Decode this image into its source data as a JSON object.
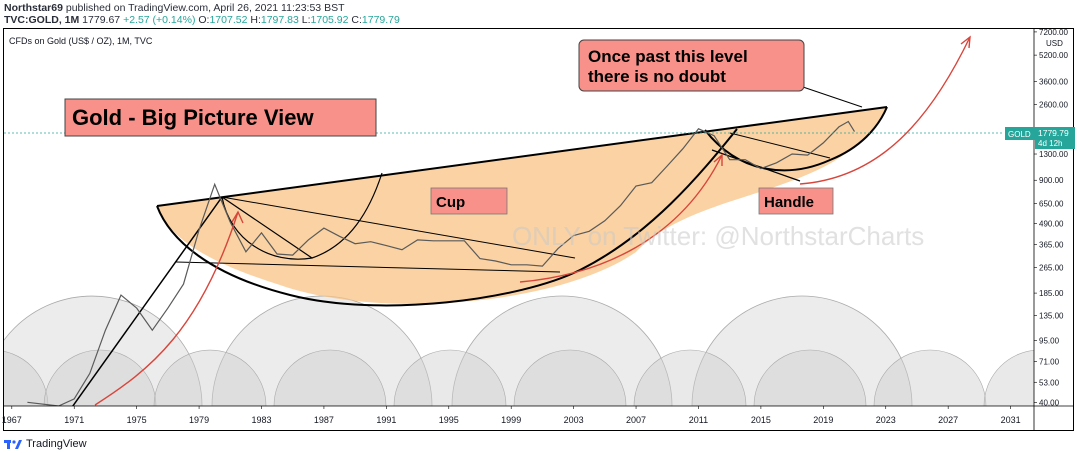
{
  "header": {
    "author": "Northstar69",
    "published": "published on TradingView.com, April 26, 2021 11:23:53 BST",
    "symbol": "TVC:GOLD, 1M",
    "last": "1779.67",
    "change": "+2.57 (+0.14%)",
    "o_label": "O:",
    "o_value": "1707.52",
    "h_label": "H:",
    "h_value": "1797.83",
    "l_label": "L:",
    "l_value": "1705.92",
    "c_label": "C:",
    "c_value": "1779.79"
  },
  "footer": {
    "brand": "TradingView"
  },
  "colors": {
    "up": "#26a69a",
    "down": "#ef5350",
    "cup_fill": "#f8c384",
    "callout": "#f7918a",
    "curve": "#d8453b",
    "cycle": "#cfcfcf"
  },
  "chart_data": {
    "type": "line",
    "chart_label": "CFDs on Gold (US$ / OZ), 1M, TVC",
    "title_box": "Gold - Big Picture View",
    "annotations": {
      "cup": "Cup",
      "handle": "Handle",
      "callout": "Once past this level\nthere is no doubt"
    },
    "watermark": "ONLY on Twitter: @NorthstarCharts",
    "x_ticks": [
      "1967",
      "1971",
      "1975",
      "1979",
      "1983",
      "1987",
      "1991",
      "1995",
      "1999",
      "2003",
      "2007",
      "2011",
      "2015",
      "2019",
      "2023",
      "2027",
      "2031"
    ],
    "y_ticks": [
      "7200.00",
      "5200.00",
      "3600.00",
      "2600.00",
      "1300.00",
      "900.00",
      "650.00",
      "490.00",
      "365.00",
      "265.00",
      "185.00",
      "135.00",
      "95.00",
      "71.00",
      "53.00",
      "40.00"
    ],
    "y_currency": "USD",
    "price_label": {
      "symbol": "GOLD",
      "value": "1779.79",
      "countdown": "4d 12h"
    },
    "y_scale": "log",
    "ylim": [
      38,
      7500
    ],
    "xlim": [
      1966.5,
      2032.5
    ],
    "series": [
      {
        "values": [
          [
            1968,
            40
          ],
          [
            1970,
            38
          ],
          [
            1971,
            42
          ],
          [
            1972,
            60
          ],
          [
            1973,
            110
          ],
          [
            1974,
            180
          ],
          [
            1975,
            150
          ],
          [
            1976,
            110
          ],
          [
            1977,
            150
          ],
          [
            1978,
            210
          ],
          [
            1979,
            450
          ],
          [
            1980,
            850
          ],
          [
            1980.5,
            650
          ],
          [
            1981,
            500
          ],
          [
            1982,
            330
          ],
          [
            1983,
            430
          ],
          [
            1984,
            320
          ],
          [
            1985,
            315
          ],
          [
            1986,
            390
          ],
          [
            1987,
            460
          ],
          [
            1988,
            410
          ],
          [
            1989,
            370
          ],
          [
            1990,
            380
          ],
          [
            1991,
            360
          ],
          [
            1992,
            340
          ],
          [
            1993,
            390
          ],
          [
            1994,
            385
          ],
          [
            1995,
            385
          ],
          [
            1996,
            385
          ],
          [
            1997,
            300
          ],
          [
            1998,
            290
          ],
          [
            1999,
            275
          ],
          [
            2000,
            275
          ],
          [
            2001,
            270
          ],
          [
            2002,
            345
          ],
          [
            2003,
            415
          ],
          [
            2004,
            440
          ],
          [
            2005,
            510
          ],
          [
            2006,
            630
          ],
          [
            2007,
            830
          ],
          [
            2008,
            870
          ],
          [
            2009,
            1100
          ],
          [
            2010,
            1400
          ],
          [
            2011,
            1850
          ],
          [
            2012,
            1680
          ],
          [
            2013,
            1200
          ],
          [
            2014,
            1200
          ],
          [
            2015,
            1060
          ],
          [
            2016,
            1150
          ],
          [
            2017,
            1300
          ],
          [
            2018,
            1280
          ],
          [
            2019,
            1520
          ],
          [
            2020,
            1900
          ],
          [
            2020.6,
            2050
          ],
          [
            2021,
            1780
          ]
        ]
      }
    ]
  }
}
